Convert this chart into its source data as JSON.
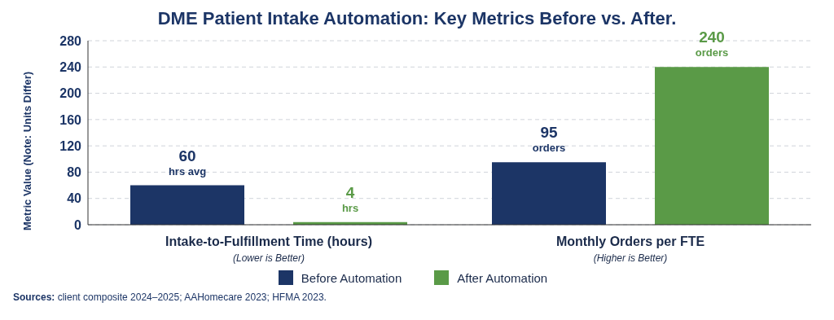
{
  "chart_data": {
    "type": "bar",
    "title": "DME Patient Intake Automation: Key Metrics Before vs. After.",
    "ylabel": "Metric Value (Note: Units Differ)",
    "categories": [
      "Intake-to-Fulfillment Time (hours)\n(Lower is Better)",
      "Monthly Orders per FTE\n(Higher is Better)"
    ],
    "series": [
      {
        "name": "Before Automation",
        "color": "#1c3566",
        "values": [
          60,
          95
        ],
        "value_labels": [
          "60\nhrs avg",
          "95\norders"
        ]
      },
      {
        "name": "After Automation",
        "color": "#5a9a47",
        "values": [
          4,
          240
        ],
        "value_labels": [
          "4\nhrs",
          "240\norders"
        ]
      }
    ],
    "ylim": [
      0,
      280
    ],
    "yticks": [
      0,
      40,
      80,
      120,
      160,
      200,
      240,
      280
    ],
    "grid": "y",
    "legend": "bottom",
    "annotations": [
      "Sources: client composite 2024–2025; AAHomecare 2023; HFMA 2023."
    ]
  }
}
